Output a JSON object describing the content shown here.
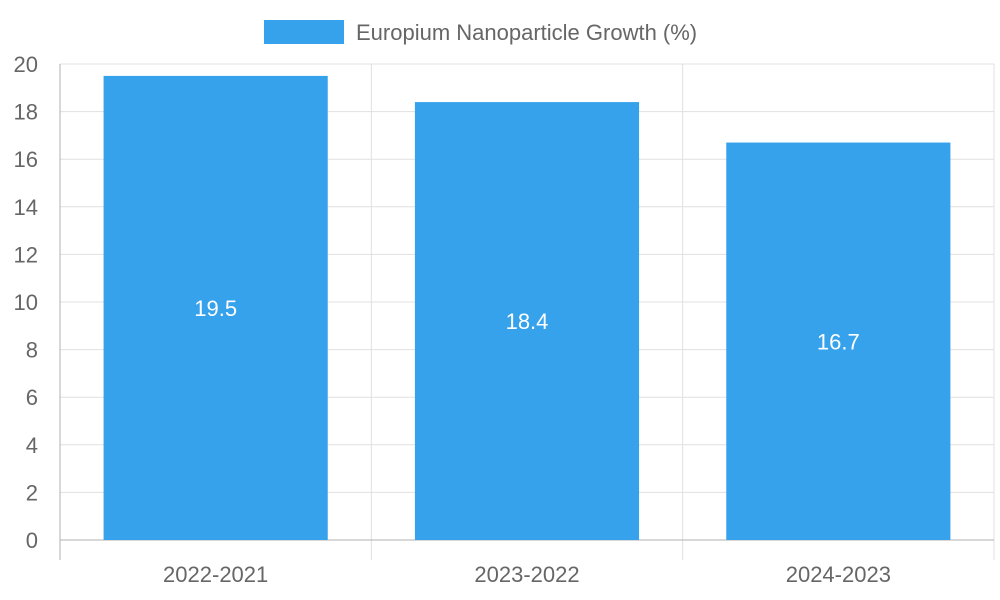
{
  "chart_data": {
    "type": "bar",
    "categories": [
      "2022-2021",
      "2023-2022",
      "2024-2023"
    ],
    "series": [
      {
        "name": "Europium Nanoparticle Growth (%)",
        "values": [
          19.5,
          18.4,
          16.7
        ],
        "color": "#36a2eb"
      }
    ],
    "data_labels": [
      "19.5",
      "18.4",
      "16.7"
    ],
    "y_ticks": [
      "0",
      "2",
      "4",
      "6",
      "8",
      "10",
      "12",
      "14",
      "16",
      "18",
      "20"
    ],
    "ylim": [
      0,
      20
    ],
    "grid": true,
    "legend_position": "top-center",
    "colors": {
      "grid": "#e0e0e0",
      "axis": "#b0b0b0",
      "text": "#666666",
      "label": "#ffffff"
    }
  }
}
